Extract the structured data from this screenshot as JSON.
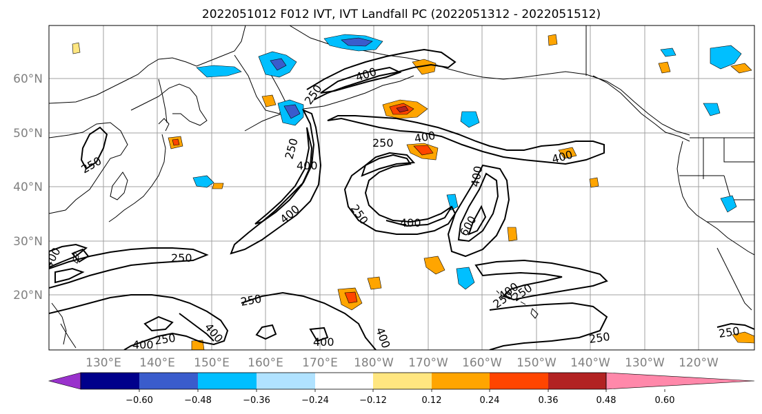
{
  "title": "2022051012 F012 IVT, IVT Landfall PC (2022051312 - 2022051512)",
  "lat_labels": [
    "60°N",
    "50°N",
    "40°N",
    "30°N",
    "20°N"
  ],
  "lon_labels": [
    "130°E",
    "140°E",
    "150°E",
    "160°E",
    "170°E",
    "180°W",
    "170°W",
    "160°W",
    "150°W",
    "140°W",
    "130°W",
    "120°W"
  ],
  "colorbar": {
    "ticks": [
      "−0.60",
      "−0.48",
      "−0.36",
      "−0.24",
      "−0.12",
      "0.12",
      "0.24",
      "0.36",
      "0.48",
      "0.60"
    ],
    "colors": [
      "#9932cc",
      "#00008b",
      "#3a5ccc",
      "#00bfff",
      "#b0e2ff",
      "#ffffff",
      "#ffe680",
      "#ffa500",
      "#ff4500",
      "#b22222",
      "#ff88aa"
    ]
  },
  "contour_labels": [
    "400",
    "250",
    "250",
    "400",
    "250",
    "400",
    "400",
    "400",
    "250",
    "400",
    "250",
    "600",
    "400",
    "400",
    "400",
    "250",
    "250",
    "250",
    "400",
    "400",
    "400",
    "250",
    "400",
    "250",
    "250",
    "250"
  ]
}
